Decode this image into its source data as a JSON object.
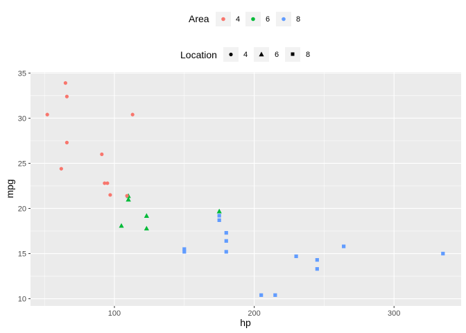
{
  "colors": {
    "4": "#F8766D",
    "6": "#00BA38",
    "8": "#619CFF",
    "panel": "#EBEBEB",
    "grid": "#FFFFFF"
  },
  "legend_color": {
    "title": "Area",
    "items": [
      "4",
      "6",
      "8"
    ]
  },
  "legend_shape": {
    "title": "Location",
    "items": [
      "4",
      "6",
      "8"
    ],
    "shapes": [
      "circle",
      "triangle",
      "square"
    ]
  },
  "chart_data": {
    "type": "scatter",
    "xlabel": "hp",
    "ylabel": "mpg",
    "xlim": [
      40,
      348
    ],
    "ylim": [
      9.2,
      35.1
    ],
    "x_ticks": [
      100,
      200,
      300
    ],
    "x_tick_labels": [
      "100",
      "200",
      "300"
    ],
    "y_ticks": [
      10,
      15,
      20,
      25,
      30,
      35
    ],
    "y_tick_labels": [
      "10",
      "15",
      "20",
      "25",
      "30",
      "35"
    ],
    "grid": true,
    "points": [
      {
        "x": 110,
        "y": 21.0,
        "area": "6",
        "location": "6"
      },
      {
        "x": 110,
        "y": 21.0,
        "area": "6",
        "location": "6"
      },
      {
        "x": 93,
        "y": 22.8,
        "area": "4",
        "location": "4"
      },
      {
        "x": 110,
        "y": 21.4,
        "area": "6",
        "location": "6"
      },
      {
        "x": 175,
        "y": 18.7,
        "area": "8",
        "location": "8"
      },
      {
        "x": 105,
        "y": 18.1,
        "area": "6",
        "location": "6"
      },
      {
        "x": 245,
        "y": 14.3,
        "area": "8",
        "location": "8"
      },
      {
        "x": 62,
        "y": 24.4,
        "area": "4",
        "location": "4"
      },
      {
        "x": 95,
        "y": 22.8,
        "area": "4",
        "location": "4"
      },
      {
        "x": 123,
        "y": 19.2,
        "area": "6",
        "location": "6"
      },
      {
        "x": 123,
        "y": 17.8,
        "area": "6",
        "location": "6"
      },
      {
        "x": 180,
        "y": 16.4,
        "area": "8",
        "location": "8"
      },
      {
        "x": 180,
        "y": 17.3,
        "area": "8",
        "location": "8"
      },
      {
        "x": 180,
        "y": 15.2,
        "area": "8",
        "location": "8"
      },
      {
        "x": 205,
        "y": 10.4,
        "area": "8",
        "location": "8"
      },
      {
        "x": 215,
        "y": 10.4,
        "area": "8",
        "location": "8"
      },
      {
        "x": 230,
        "y": 14.7,
        "area": "8",
        "location": "8"
      },
      {
        "x": 66,
        "y": 32.4,
        "area": "4",
        "location": "4"
      },
      {
        "x": 52,
        "y": 30.4,
        "area": "4",
        "location": "4"
      },
      {
        "x": 65,
        "y": 33.9,
        "area": "4",
        "location": "4"
      },
      {
        "x": 97,
        "y": 21.5,
        "area": "4",
        "location": "4"
      },
      {
        "x": 150,
        "y": 15.5,
        "area": "8",
        "location": "8"
      },
      {
        "x": 150,
        "y": 15.2,
        "area": "8",
        "location": "8"
      },
      {
        "x": 245,
        "y": 13.3,
        "area": "8",
        "location": "8"
      },
      {
        "x": 175,
        "y": 19.2,
        "area": "8",
        "location": "8"
      },
      {
        "x": 66,
        "y": 27.3,
        "area": "4",
        "location": "4"
      },
      {
        "x": 91,
        "y": 26.0,
        "area": "4",
        "location": "4"
      },
      {
        "x": 113,
        "y": 30.4,
        "area": "4",
        "location": "4"
      },
      {
        "x": 264,
        "y": 15.8,
        "area": "8",
        "location": "8"
      },
      {
        "x": 175,
        "y": 19.7,
        "area": "6",
        "location": "6"
      },
      {
        "x": 335,
        "y": 15.0,
        "area": "8",
        "location": "8"
      },
      {
        "x": 109,
        "y": 21.4,
        "area": "4",
        "location": "4"
      }
    ]
  }
}
